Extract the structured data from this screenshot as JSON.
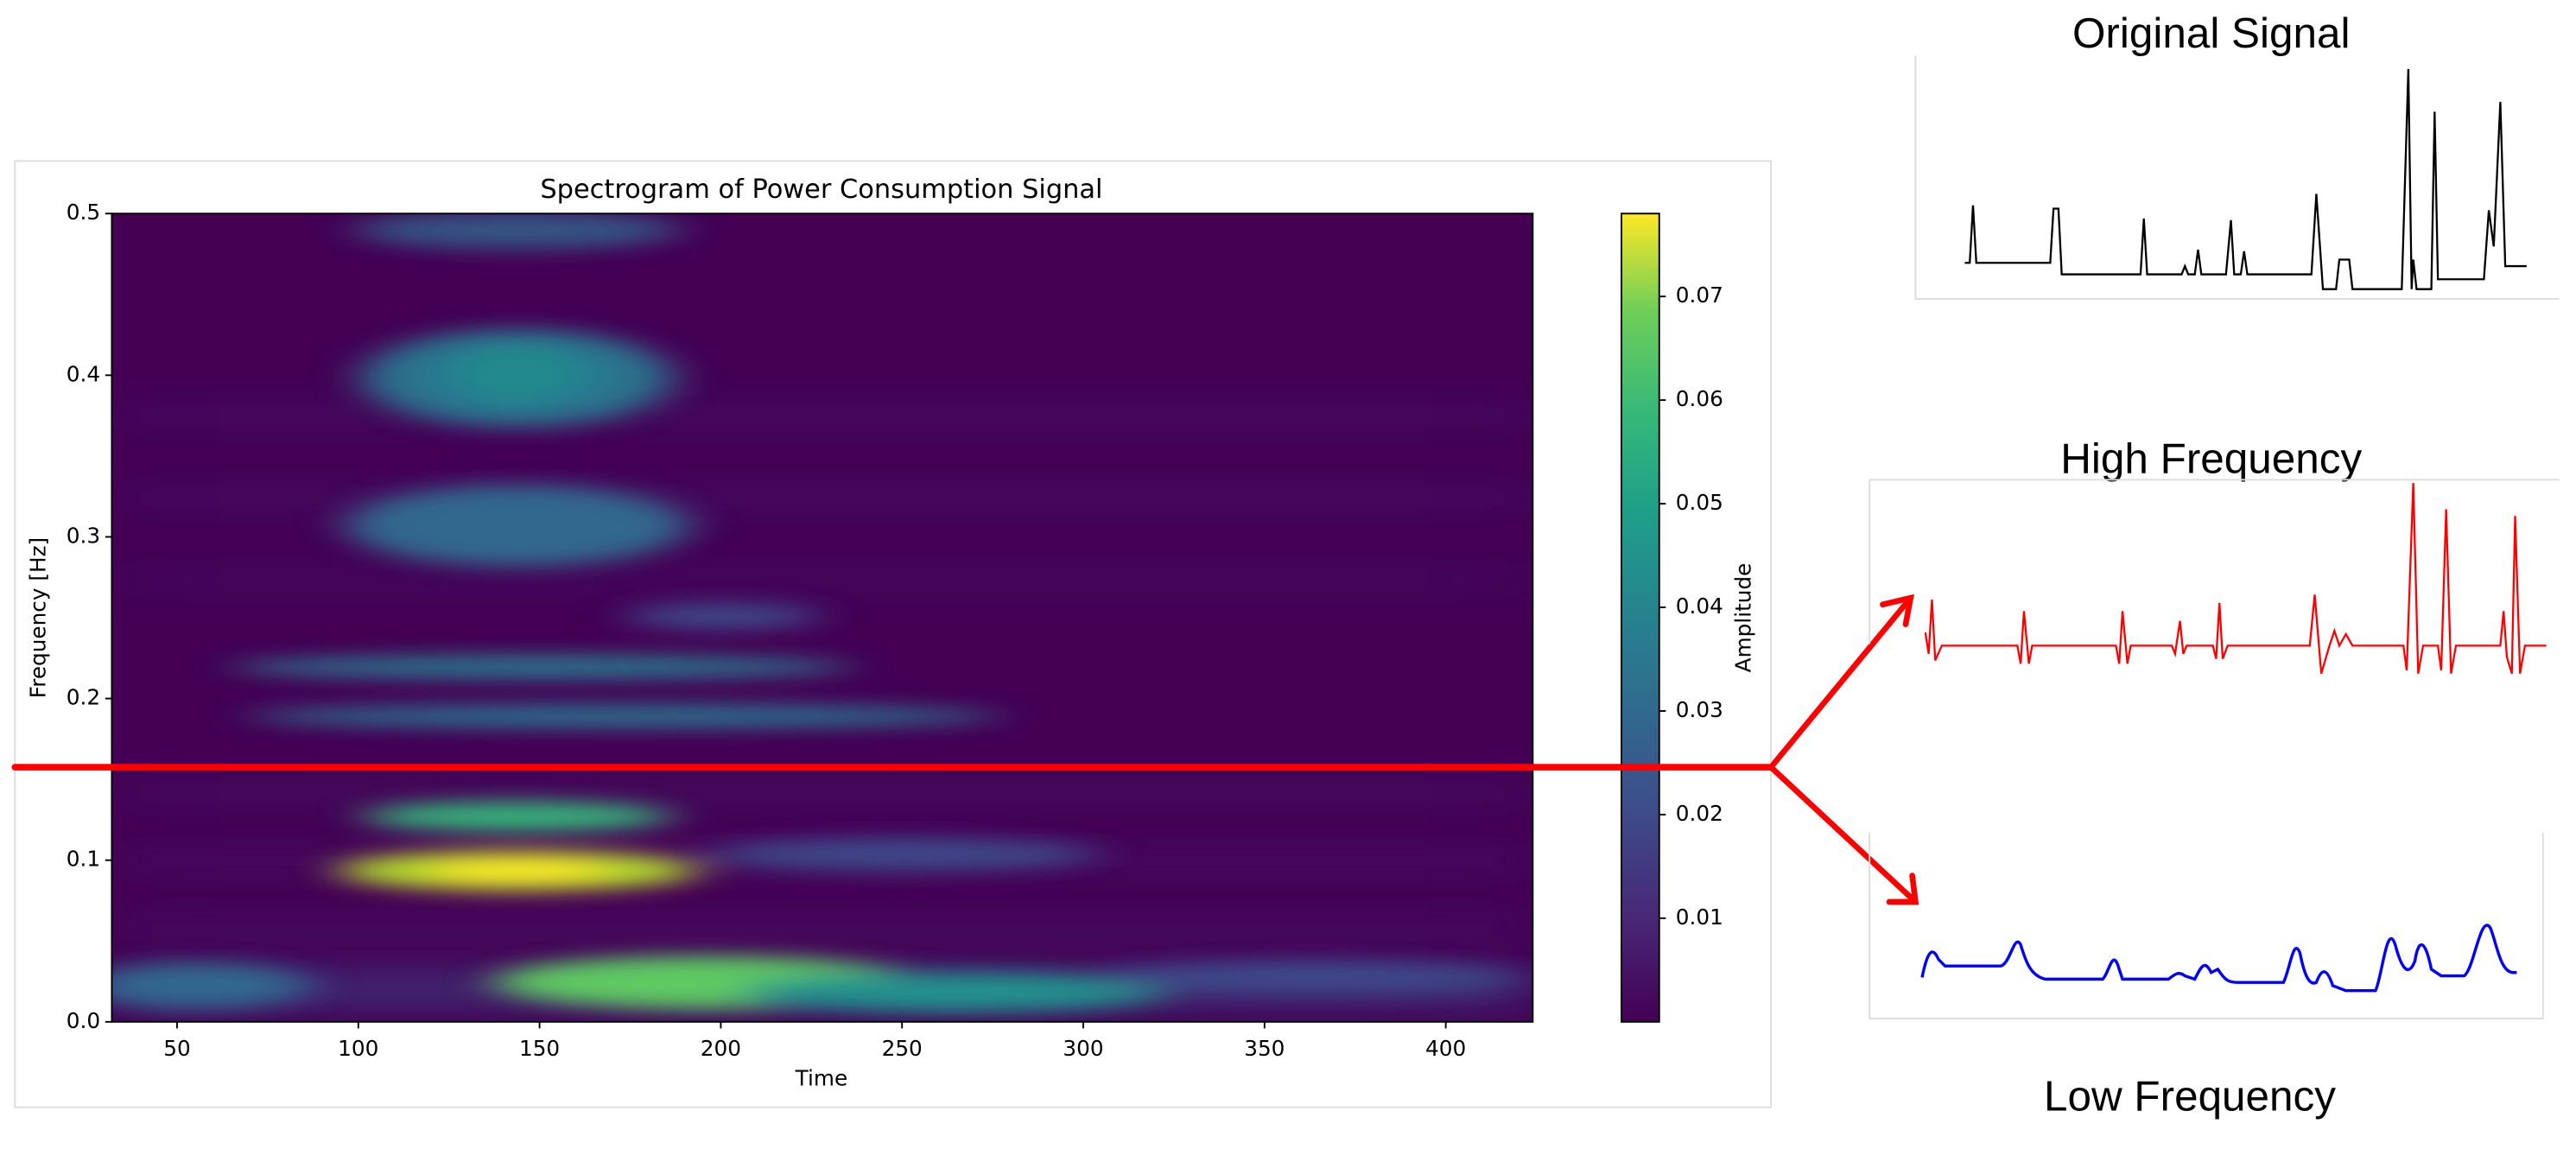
{
  "spectrogram": {
    "title": "Spectrogram of Power Consumption Signal",
    "xlabel": "Time",
    "ylabel": "Frequency [Hz]",
    "xlim": [
      32,
      424
    ],
    "xticks": [
      50,
      100,
      150,
      200,
      250,
      300,
      350,
      400
    ],
    "ylim": [
      0,
      0.5
    ],
    "yticks": [
      {
        "value": 0,
        "label": "0.0"
      },
      {
        "value": 0.1,
        "label": "0.1"
      },
      {
        "value": 0.2,
        "label": "0.2"
      },
      {
        "value": 0.3,
        "label": "0.3"
      },
      {
        "value": 0.4,
        "label": "0.4"
      },
      {
        "value": 0.5,
        "label": "0.5"
      }
    ],
    "colorbar": {
      "label": "Amplitude",
      "lim": [
        0,
        0.078
      ],
      "ticks": [
        0.01,
        0.02,
        0.03,
        0.04,
        0.05,
        0.06,
        0.07
      ]
    }
  },
  "panels": {
    "original": "Original Signal",
    "high": "High Frequency",
    "low": "Low Frequency"
  }
}
